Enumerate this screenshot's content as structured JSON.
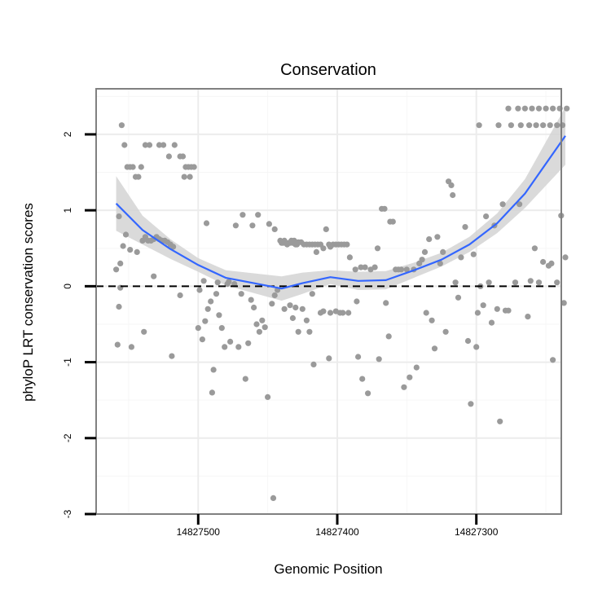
{
  "chart_data": {
    "type": "scatter",
    "title": "Conservation",
    "xlabel": "Genomic Position",
    "ylabel": "phyloP LRT conservation scores",
    "x_reversed": true,
    "xlim": [
      14827573.4,
      14827238.9
    ],
    "ylim": [
      -3.0,
      2.6
    ],
    "x_ticks": [
      14827500,
      14827400,
      14827300
    ],
    "x_tick_labels": [
      "14827500",
      "14827400",
      "14827300"
    ],
    "y_ticks": [
      -3,
      -2,
      -1,
      0,
      1,
      2
    ],
    "y_tick_labels": [
      "-3",
      "-2",
      "-1",
      "0",
      "1",
      "2"
    ],
    "reference_line": {
      "y": 0,
      "style": "dashed"
    },
    "colors": {
      "points": "#9a9a9a",
      "smooth": "#3366ff",
      "band": "#d3d3d3",
      "frame": "#808080"
    },
    "series": [
      {
        "name": "scores",
        "points": [
          [
            14827559,
            0.22
          ],
          [
            14827557,
            0.92
          ],
          [
            14827555,
            2.12
          ],
          [
            14827553,
            1.86
          ],
          [
            14827551,
            1.57
          ],
          [
            14827549,
            1.57
          ],
          [
            14827547,
            1.57
          ],
          [
            14827545,
            1.44
          ],
          [
            14827543,
            1.44
          ],
          [
            14827541,
            1.57
          ],
          [
            14827556,
            0.3
          ],
          [
            14827554,
            0.53
          ],
          [
            14827552,
            0.68
          ],
          [
            14827549,
            0.48
          ],
          [
            14827544,
            0.45
          ],
          [
            14827540,
            0.6
          ],
          [
            14827538,
            0.65
          ],
          [
            14827536,
            0.6
          ],
          [
            14827534,
            0.6
          ],
          [
            14827532,
            0.62
          ],
          [
            14827530,
            0.65
          ],
          [
            14827528,
            0.62
          ],
          [
            14827526,
            0.6
          ],
          [
            14827524,
            0.6
          ],
          [
            14827522,
            0.58
          ],
          [
            14827520,
            0.55
          ],
          [
            14827518,
            0.52
          ],
          [
            14827538,
            1.86
          ],
          [
            14827535,
            1.86
          ],
          [
            14827528,
            1.86
          ],
          [
            14827525,
            1.86
          ],
          [
            14827521,
            1.71
          ],
          [
            14827517,
            1.86
          ],
          [
            14827513,
            1.71
          ],
          [
            14827511,
            1.71
          ],
          [
            14827509,
            1.57
          ],
          [
            14827507,
            1.57
          ],
          [
            14827505,
            1.57
          ],
          [
            14827503,
            1.57
          ],
          [
            14827510,
            1.44
          ],
          [
            14827506,
            1.44
          ],
          [
            14827532,
            0.13
          ],
          [
            14827513,
            -0.12
          ],
          [
            14827558,
            -0.77
          ],
          [
            14827557,
            -0.27
          ],
          [
            14827556,
            -0.02
          ],
          [
            14827548,
            -0.8
          ],
          [
            14827539,
            -0.6
          ],
          [
            14827519,
            -0.92
          ],
          [
            14827500,
            -0.55
          ],
          [
            14827497,
            -0.7
          ],
          [
            14827495,
            -0.46
          ],
          [
            14827493,
            -0.3
          ],
          [
            14827491,
            -0.2
          ],
          [
            14827489,
            -1.1
          ],
          [
            14827487,
            -0.1
          ],
          [
            14827485,
            -0.38
          ],
          [
            14827483,
            -0.55
          ],
          [
            14827481,
            -0.8
          ],
          [
            14827494,
            0.83
          ],
          [
            14827490,
            -1.4
          ],
          [
            14827479,
            0.03
          ],
          [
            14827477,
            -0.73
          ],
          [
            14827474,
            0.03
          ],
          [
            14827471,
            -0.8
          ],
          [
            14827469,
            -0.1
          ],
          [
            14827466,
            -1.22
          ],
          [
            14827464,
            -0.75
          ],
          [
            14827462,
            -0.18
          ],
          [
            14827460,
            -0.28
          ],
          [
            14827458,
            -0.5
          ],
          [
            14827456,
            -0.6
          ],
          [
            14827454,
            -0.45
          ],
          [
            14827452,
            -0.54
          ],
          [
            14827450,
            -1.46
          ],
          [
            14827447,
            -0.23
          ],
          [
            14827445,
            -0.12
          ],
          [
            14827443,
            -0.05
          ],
          [
            14827473,
            0.8
          ],
          [
            14827468,
            0.94
          ],
          [
            14827461,
            0.8
          ],
          [
            14827457,
            0.94
          ],
          [
            14827449,
            0.82
          ],
          [
            14827445,
            0.75
          ],
          [
            14827446,
            -2.79
          ],
          [
            14827499,
            -0.05
          ],
          [
            14827496,
            0.07
          ],
          [
            14827486,
            0.05
          ],
          [
            14827478,
            0.06
          ],
          [
            14827441,
            0.6
          ],
          [
            14827440,
            0.57
          ],
          [
            14827439,
            0.57
          ],
          [
            14827438,
            0.6
          ],
          [
            14827437,
            0.57
          ],
          [
            14827436,
            0.55
          ],
          [
            14827435,
            0.57
          ],
          [
            14827434,
            0.57
          ],
          [
            14827433,
            0.6
          ],
          [
            14827432,
            0.57
          ],
          [
            14827431,
            0.6
          ],
          [
            14827430,
            0.55
          ],
          [
            14827429,
            0.55
          ],
          [
            14827428,
            0.58
          ],
          [
            14827426,
            0.58
          ],
          [
            14827424,
            0.55
          ],
          [
            14827422,
            0.55
          ],
          [
            14827420,
            0.55
          ],
          [
            14827418,
            0.55
          ],
          [
            14827416,
            0.55
          ],
          [
            14827415,
            0.45
          ],
          [
            14827414,
            0.55
          ],
          [
            14827412,
            0.55
          ],
          [
            14827410,
            0.5
          ],
          [
            14827406,
            0.55
          ],
          [
            14827405,
            0.52
          ],
          [
            14827403,
            0.55
          ],
          [
            14827401,
            0.55
          ],
          [
            14827399,
            0.55
          ],
          [
            14827397,
            0.55
          ],
          [
            14827395,
            0.55
          ],
          [
            14827393,
            0.55
          ],
          [
            14827408,
            0.75
          ],
          [
            14827438,
            -0.3
          ],
          [
            14827434,
            -0.25
          ],
          [
            14827432,
            -0.42
          ],
          [
            14827430,
            -0.28
          ],
          [
            14827428,
            -0.6
          ],
          [
            14827425,
            -0.3
          ],
          [
            14827422,
            -0.45
          ],
          [
            14827420,
            -0.6
          ],
          [
            14827418,
            -0.1
          ],
          [
            14827417,
            -1.03
          ],
          [
            14827412,
            -0.35
          ],
          [
            14827410,
            -0.33
          ],
          [
            14827406,
            -0.95
          ],
          [
            14827405,
            -0.35
          ],
          [
            14827401,
            -0.33
          ],
          [
            14827398,
            -0.35
          ],
          [
            14827396,
            -0.35
          ],
          [
            14827392,
            -0.35
          ],
          [
            14827391,
            0.38
          ],
          [
            14827387,
            0.22
          ],
          [
            14827386,
            -0.2
          ],
          [
            14827385,
            -0.93
          ],
          [
            14827383,
            0.25
          ],
          [
            14827382,
            -1.22
          ],
          [
            14827380,
            0.25
          ],
          [
            14827378,
            -1.41
          ],
          [
            14827376,
            0.22
          ],
          [
            14827373,
            0.25
          ],
          [
            14827371,
            0.5
          ],
          [
            14827370,
            -0.96
          ],
          [
            14827368,
            1.02
          ],
          [
            14827366,
            1.02
          ],
          [
            14827365,
            -0.22
          ],
          [
            14827363,
            -0.66
          ],
          [
            14827362,
            0.85
          ],
          [
            14827360,
            0.85
          ],
          [
            14827358,
            0.22
          ],
          [
            14827356,
            0.22
          ],
          [
            14827354,
            0.22
          ],
          [
            14827352,
            -1.33
          ],
          [
            14827350,
            0.22
          ],
          [
            14827348,
            -1.2
          ],
          [
            14827345,
            0.22
          ],
          [
            14827343,
            -1.07
          ],
          [
            14827341,
            0.3
          ],
          [
            14827339,
            0.35
          ],
          [
            14827337,
            0.45
          ],
          [
            14827336,
            -0.35
          ],
          [
            14827334,
            0.62
          ],
          [
            14827332,
            -0.45
          ],
          [
            14827330,
            -0.82
          ],
          [
            14827328,
            0.65
          ],
          [
            14827326,
            0.3
          ],
          [
            14827324,
            0.45
          ],
          [
            14827322,
            -0.6
          ],
          [
            14827320,
            1.38
          ],
          [
            14827318,
            1.33
          ],
          [
            14827317,
            1.2
          ],
          [
            14827315,
            0.05
          ],
          [
            14827313,
            -0.15
          ],
          [
            14827311,
            0.38
          ],
          [
            14827308,
            0.78
          ],
          [
            14827306,
            -0.72
          ],
          [
            14827304,
            -1.55
          ],
          [
            14827302,
            0.42
          ],
          [
            14827300,
            -0.8
          ],
          [
            14827299,
            -0.35
          ],
          [
            14827297,
            0.0
          ],
          [
            14827295,
            -0.25
          ],
          [
            14827293,
            0.92
          ],
          [
            14827291,
            0.05
          ],
          [
            14827289,
            -0.48
          ],
          [
            14827287,
            0.8
          ],
          [
            14827285,
            -0.3
          ],
          [
            14827283,
            -1.78
          ],
          [
            14827281,
            1.08
          ],
          [
            14827279,
            -0.32
          ],
          [
            14827277,
            -0.32
          ],
          [
            14827272,
            0.05
          ],
          [
            14827269,
            1.08
          ],
          [
            14827263,
            -0.4
          ],
          [
            14827261,
            0.07
          ],
          [
            14827258,
            0.5
          ],
          [
            14827255,
            0.05
          ],
          [
            14827252,
            0.32
          ],
          [
            14827248,
            0.27
          ],
          [
            14827246,
            0.3
          ],
          [
            14827242,
            0.05
          ],
          [
            14827239,
            0.93
          ],
          [
            14827237,
            -0.22
          ],
          [
            14827236,
            0.38
          ],
          [
            14827245,
            -0.97
          ],
          [
            14827298,
            2.12
          ],
          [
            14827284,
            2.12
          ],
          [
            14827277,
            2.34
          ],
          [
            14827270,
            2.34
          ],
          [
            14827265,
            2.34
          ],
          [
            14827260,
            2.34
          ],
          [
            14827255,
            2.34
          ],
          [
            14827250,
            2.34
          ],
          [
            14827245,
            2.34
          ],
          [
            14827240,
            2.34
          ],
          [
            14827235,
            2.34
          ],
          [
            14827275,
            2.12
          ],
          [
            14827268,
            2.12
          ],
          [
            14827262,
            2.12
          ],
          [
            14827257,
            2.12
          ],
          [
            14827252,
            2.12
          ],
          [
            14827247,
            2.12
          ],
          [
            14827242,
            2.12
          ],
          [
            14827238,
            2.12
          ]
        ]
      },
      {
        "name": "loess smooth",
        "x": [
          14827559,
          14827540,
          14827520,
          14827500,
          14827480,
          14827460,
          14827440,
          14827425,
          14827405,
          14827385,
          14827365,
          14827345,
          14827325,
          14827305,
          14827285,
          14827265,
          14827236
        ],
        "y": [
          1.09,
          0.74,
          0.49,
          0.28,
          0.11,
          0.04,
          -0.03,
          0.04,
          0.12,
          0.07,
          0.08,
          0.21,
          0.35,
          0.55,
          0.83,
          1.22,
          1.98
        ],
        "ci_lower": [
          0.73,
          0.55,
          0.36,
          0.19,
          0.01,
          -0.09,
          -0.19,
          -0.1,
          0.03,
          -0.05,
          -0.04,
          0.11,
          0.26,
          0.45,
          0.7,
          1.03,
          1.6
        ],
        "ci_upper": [
          1.45,
          0.93,
          0.62,
          0.37,
          0.21,
          0.17,
          0.13,
          0.18,
          0.21,
          0.19,
          0.2,
          0.31,
          0.44,
          0.65,
          0.96,
          1.41,
          2.36
        ]
      }
    ]
  }
}
